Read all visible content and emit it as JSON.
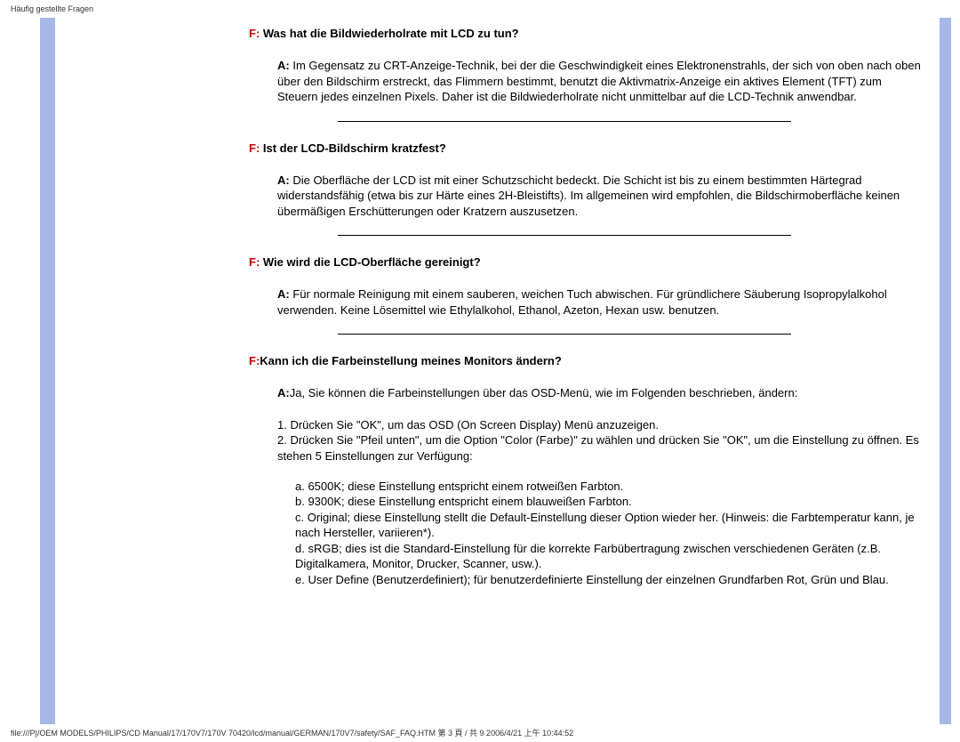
{
  "header": "Häufig gestellte Fragen",
  "footer": "file:///P|/OEM MODELS/PHILIPS/CD Manual/17/170V7/170V 70420/lcd/manual/GERMAN/170V7/safety/SAF_FAQ.HTM 第 3 頁 / 共 9 2006/4/21 上午 10:44:52",
  "faq1": {
    "qPrefix": "F:",
    "question": " Was hat die Bildwiederholrate mit LCD zu tun?",
    "aPrefix": "A:",
    "answer": " Im Gegensatz zu CRT-Anzeige-Technik, bei der die Geschwindigkeit eines Elektronenstrahls, der sich von oben nach oben über den Bildschirm erstreckt, das Flimmern bestimmt, benutzt die Aktivmatrix-Anzeige ein aktives Element (TFT) zum Steuern jedes einzelnen Pixels. Daher ist die Bildwiederholrate nicht unmittelbar auf die LCD-Technik anwendbar."
  },
  "faq2": {
    "qPrefix": "F:",
    "question": " Ist der LCD-Bildschirm kratzfest?",
    "aPrefix": "A:",
    "answer": " Die Oberfläche der LCD ist mit einer Schutzschicht bedeckt. Die Schicht ist bis zu einem bestimmten Härtegrad widerstandsfähig (etwa bis zur Härte eines 2H-Bleistifts). Im allgemeinen wird empfohlen, die Bildschirmoberfläche keinen übermäßigen Erschütterungen oder Kratzern auszusetzen."
  },
  "faq3": {
    "qPrefix": "F:",
    "question": " Wie wird die LCD-Oberfläche gereinigt?",
    "aPrefix": "A:",
    "answer": " Für normale Reinigung mit einem sauberen, weichen Tuch abwischen. Für gründlichere Säuberung Isopropylalkohol verwenden. Keine Lösemittel wie Ethylalkohol, Ethanol, Azeton, Hexan usw. benutzen."
  },
  "faq4": {
    "qPrefix": "F:",
    "question": "Kann ich die Farbeinstellung meines Monitors ändern?",
    "aPrefix": "A:",
    "answer": "Ja, Sie können die Farbeinstellungen über das OSD-Menü, wie im Folgenden beschrieben, ändern:",
    "list1": "1. Drücken Sie \"OK\", um das OSD (On Screen Display) Menü anzuzeigen.",
    "list2": "2. Drücken Sie \"Pfeil unten\", um die Option \"Color (Farbe)\" zu wählen und drücken Sie \"OK\", um die Einstellung zu öffnen. Es stehen 5 Einstellungen zur Verfügung:",
    "suba": "a. 6500K; diese Einstellung entspricht einem rotweißen Farbton.",
    "subb": "b. 9300K; diese Einstellung entspricht einem blauweißen Farbton.",
    "subc": "c. Original; diese Einstellung stellt die Default-Einstellung dieser Option wieder her. (Hinweis: die Farbtemperatur kann, je nach Hersteller, variieren*).",
    "subd": "d. sRGB; dies ist die Standard-Einstellung für die korrekte Farbübertragung zwischen verschiedenen Geräten (z.B. Digitalkamera, Monitor, Drucker, Scanner, usw.).",
    "sube": "e. User Define (Benutzerdefiniert); für benutzerdefinierte Einstellung der einzelnen Grundfarben Rot, Grün und Blau."
  }
}
